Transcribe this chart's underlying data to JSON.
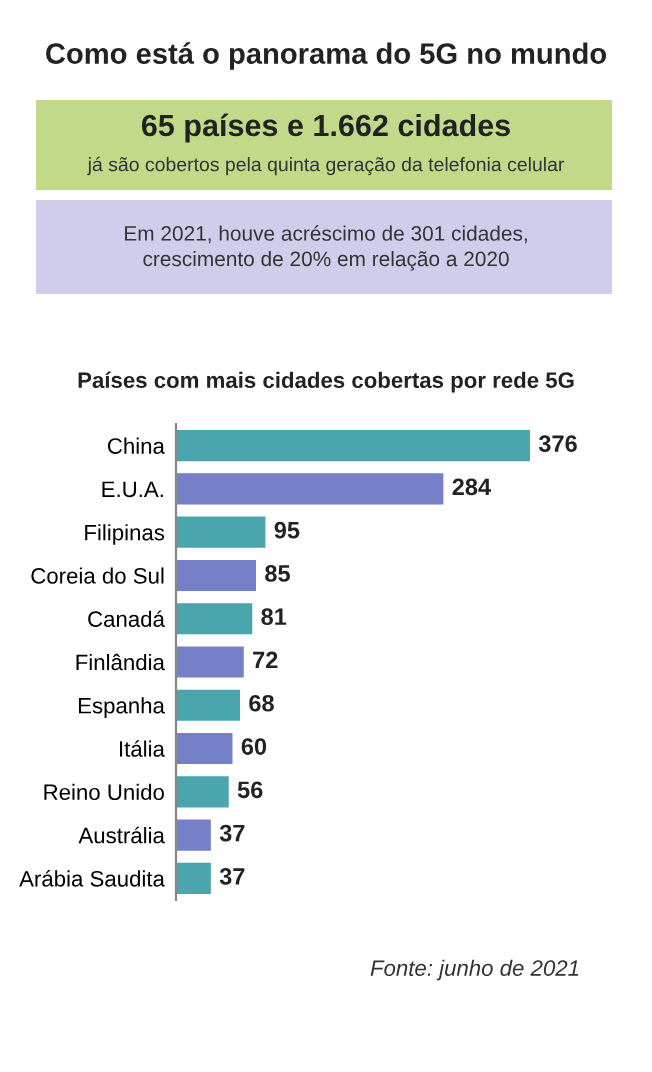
{
  "chart_data": {
    "type": "bar",
    "orientation": "horizontal",
    "title": "Como está o panorama do 5G no mundo",
    "subtitle": "Países com mais cidades cobertas por rede 5G",
    "categories": [
      "China",
      "E.U.A.",
      "Filipinas",
      "Coreia do Sul",
      "Canadá",
      "Finlândia",
      "Espanha",
      "Itália",
      "Reino Unido",
      "Austrália",
      "Arábia Saudita"
    ],
    "values": [
      376,
      284,
      95,
      85,
      81,
      72,
      68,
      60,
      56,
      37,
      37
    ],
    "colors": [
      "#4aa5ad",
      "#7580c8",
      "#4aa5ad",
      "#7580c8",
      "#4aa5ad",
      "#7580c8",
      "#4aa5ad",
      "#7580c8",
      "#4aa5ad",
      "#7580c8",
      "#4aa5ad"
    ],
    "data_labels": true,
    "grid": false,
    "annotations": [
      "65 países e 1.662 cidades",
      "já são cobertos pela quinta geração da telefonia celular",
      "Em 2021, houve acréscimo de 301 cidades,\ncrescimento de 20% em relação a 2020",
      "Fonte: junho de 2021"
    ]
  }
}
